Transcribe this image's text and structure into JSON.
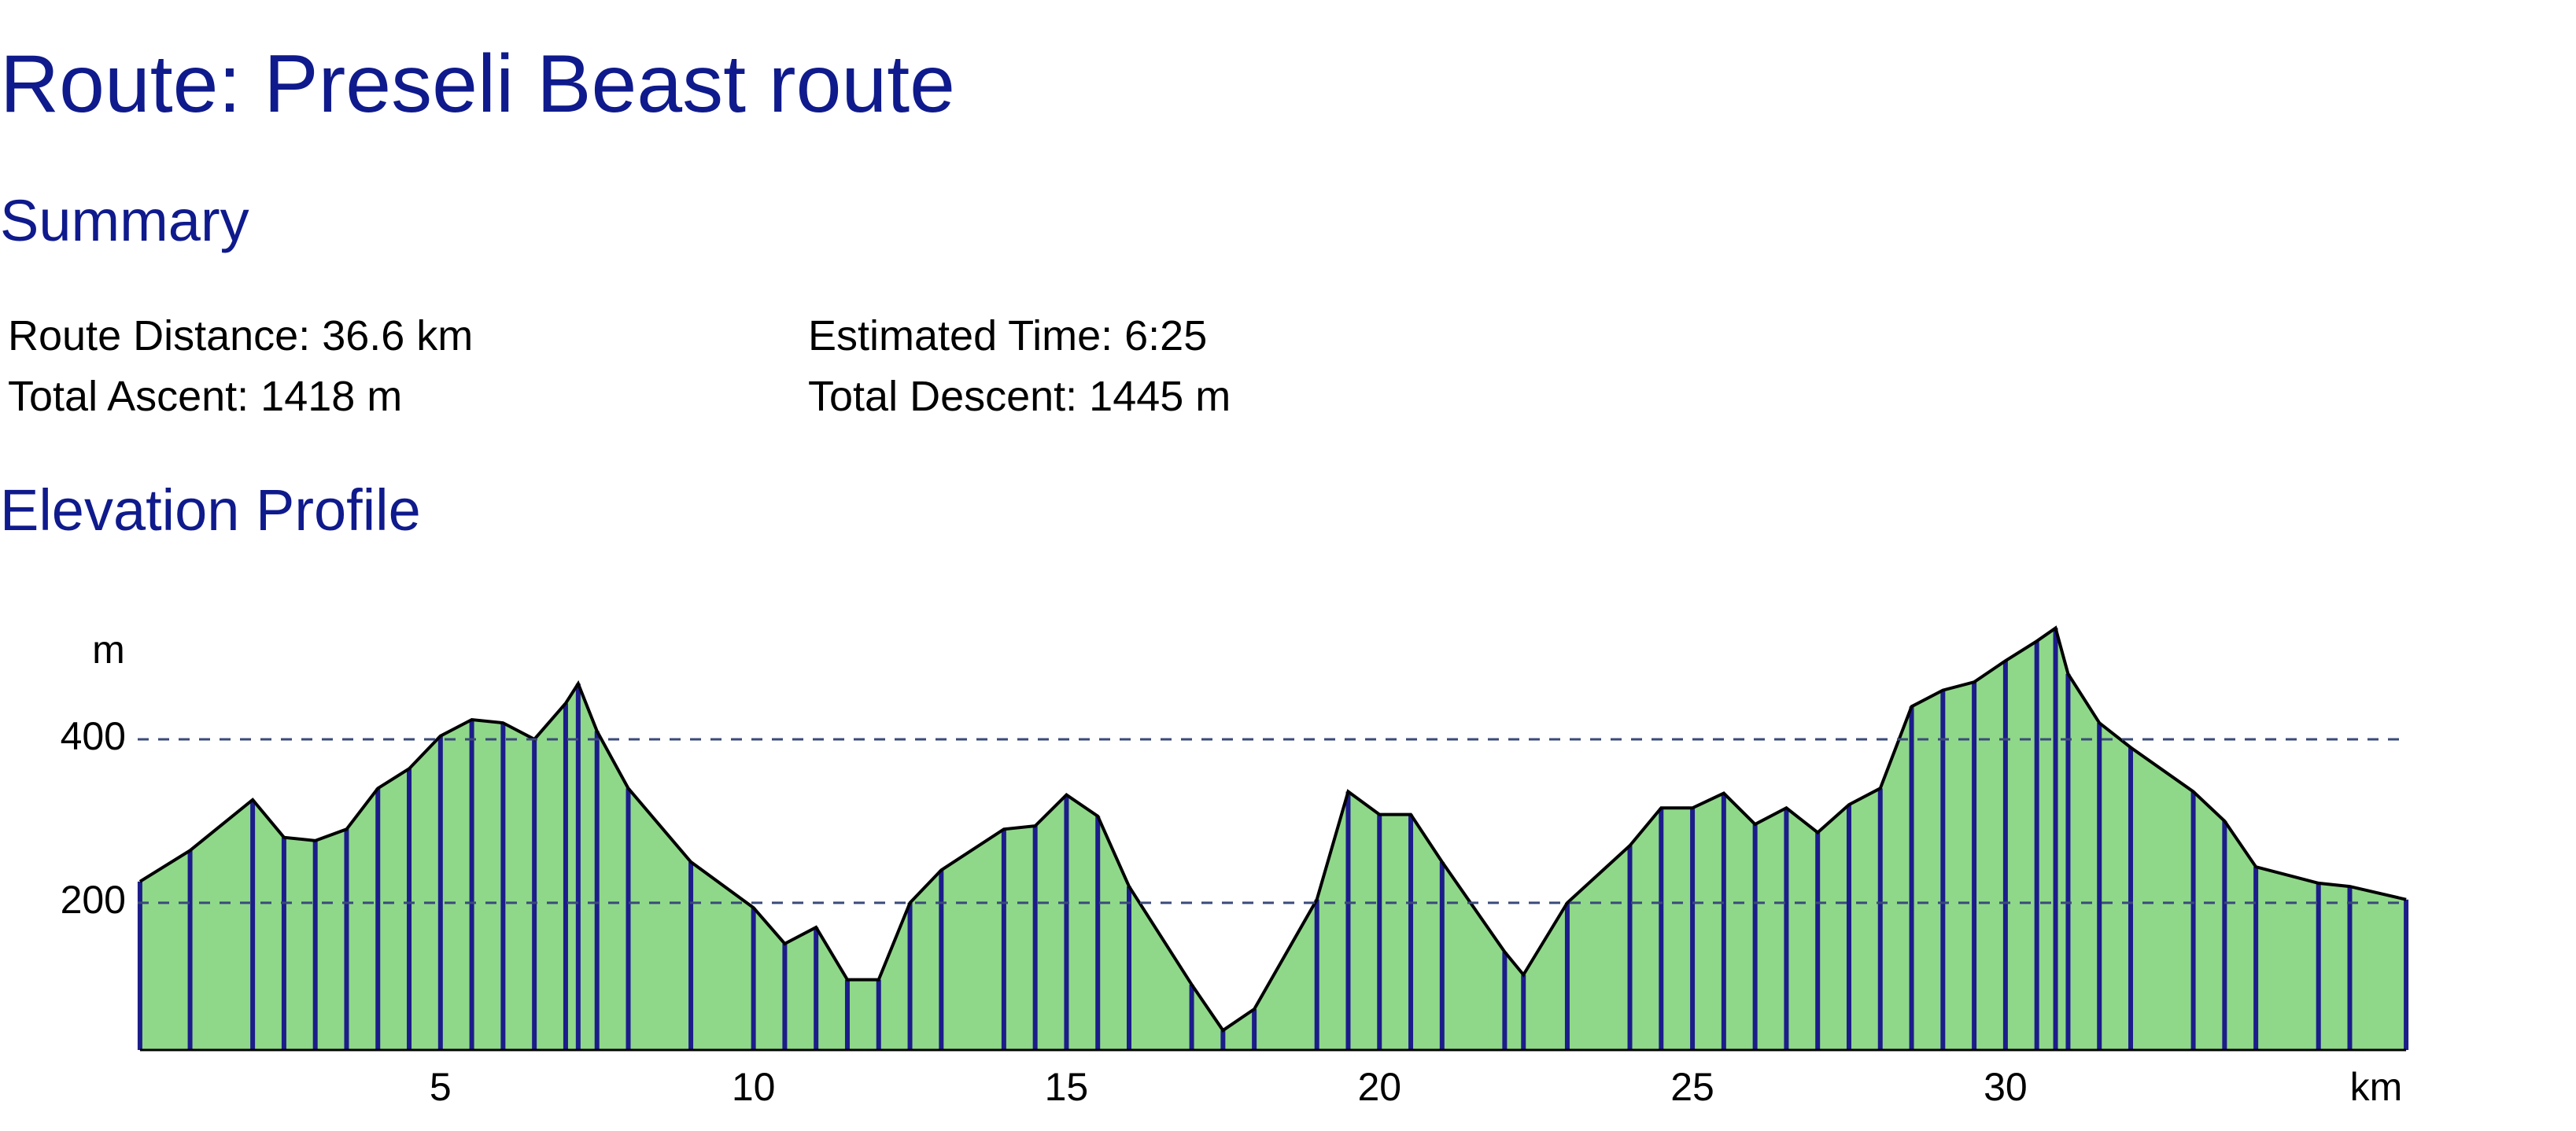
{
  "header": {
    "title": "Route: Preseli Beast route"
  },
  "summary": {
    "heading": "Summary",
    "items": [
      "Route Distance: 36.6 km",
      "Estimated Time: 6:25",
      "Total Ascent: 1418 m",
      "Total Descent: 1445 m"
    ]
  },
  "profile": {
    "heading": "Elevation Profile"
  },
  "chart_data": {
    "type": "area",
    "x": [
      0.2,
      1,
      2,
      2.5,
      3,
      3.5,
      4,
      4.5,
      5,
      5.5,
      6,
      6.5,
      7,
      7.2,
      7.5,
      8,
      9,
      10,
      10.5,
      11,
      11.5,
      12,
      12.5,
      13,
      14,
      14.5,
      15,
      15.5,
      16,
      17,
      17.5,
      18,
      19,
      19.5,
      20,
      20.5,
      21,
      22,
      22.3,
      23,
      24,
      24.5,
      25,
      25.5,
      26,
      26.5,
      27,
      27.5,
      28,
      28.5,
      29,
      29.5,
      30,
      30.5,
      30.8,
      31,
      31.5,
      32,
      33,
      33.5,
      34,
      35,
      35.5,
      36.4
    ],
    "values": [
      226,
      264,
      326,
      280,
      276,
      290,
      340,
      364,
      404,
      424,
      420,
      400,
      444,
      468,
      410,
      340,
      250,
      194,
      150,
      170,
      106,
      106,
      200,
      240,
      290,
      294,
      332,
      306,
      220,
      100,
      44,
      70,
      204,
      336,
      308,
      308,
      250,
      140,
      112,
      200,
      270,
      316,
      316,
      334,
      296,
      316,
      286,
      320,
      340,
      440,
      460,
      470,
      496,
      520,
      536,
      480,
      420,
      390,
      336,
      300,
      244,
      224,
      220,
      204
    ],
    "xlim": [
      0,
      36.6
    ],
    "ylim": [
      20,
      550
    ],
    "xticks": [
      5,
      10,
      15,
      20,
      25,
      30
    ],
    "yticks": [
      200,
      400
    ],
    "y_unit": "m",
    "x_unit": "km",
    "color": "#8fd889",
    "line_color": "#000000",
    "marker_color": "#1c1c8a",
    "grid": true
  }
}
